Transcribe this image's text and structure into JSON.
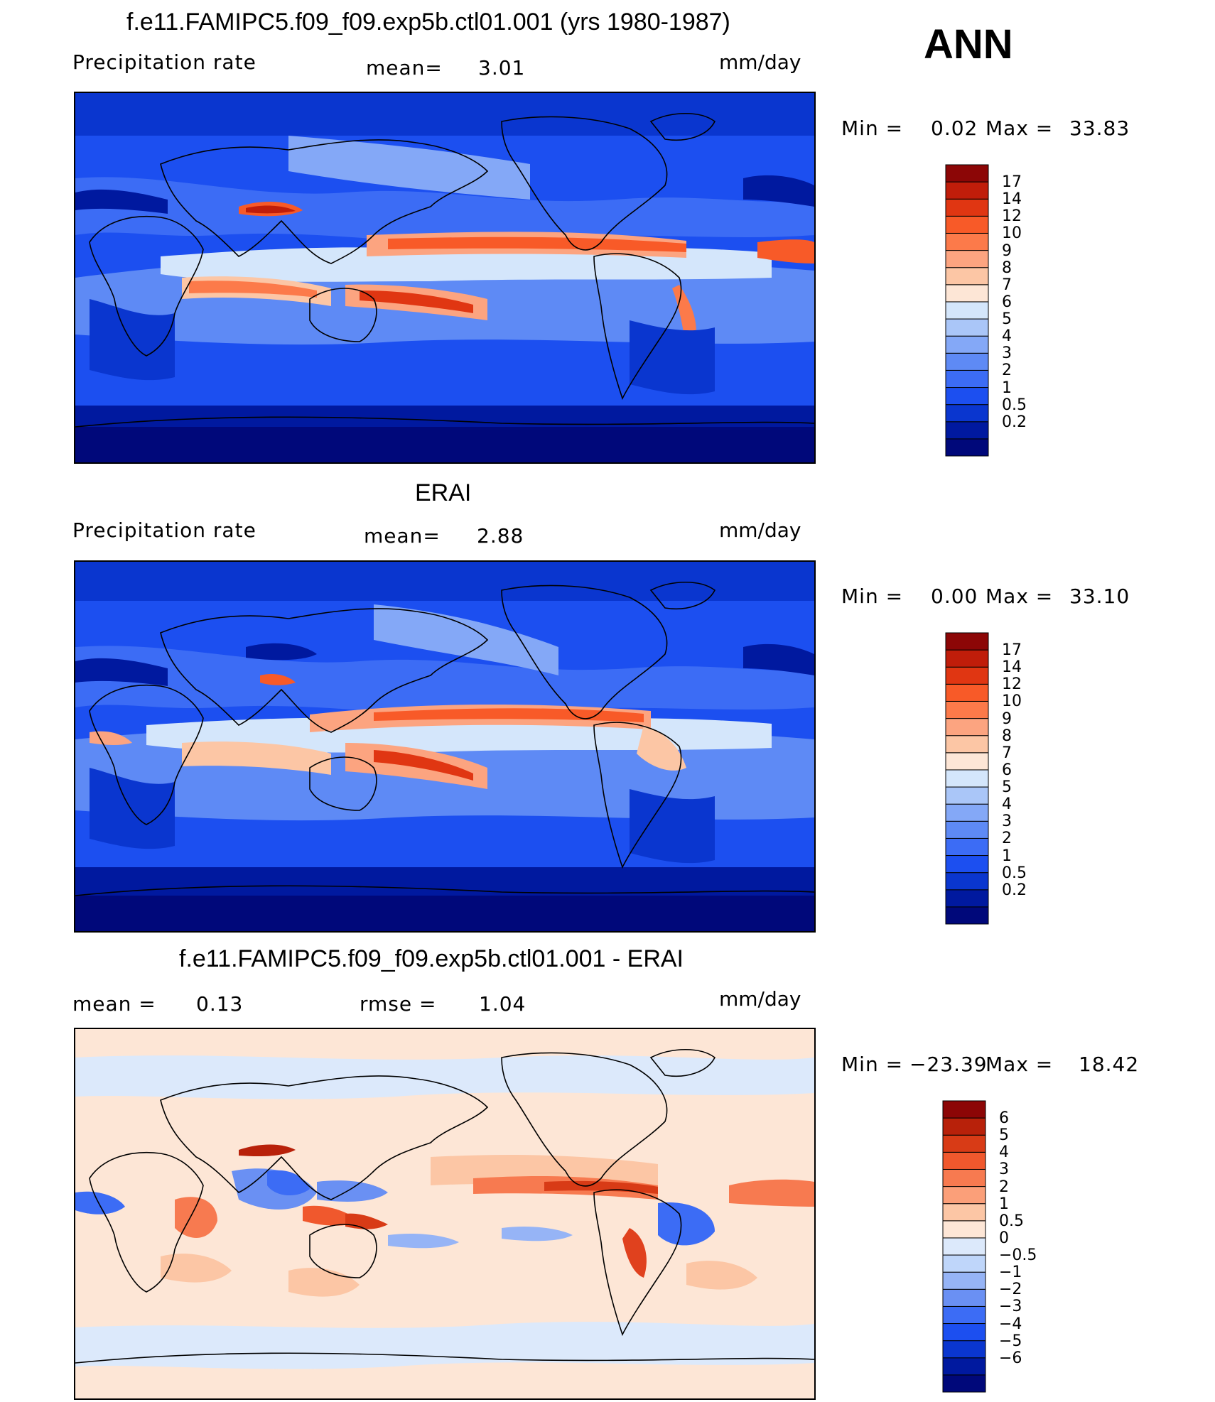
{
  "season": "ANN",
  "colors": {
    "abs": [
      "#00087a",
      "#00199f",
      "#0a36cf",
      "#1c4ff0",
      "#3c6cf5",
      "#5e8af5",
      "#84a8f7",
      "#aac6f8",
      "#d4e6fb",
      "#fde6d6",
      "#fcc6a5",
      "#fca480",
      "#fc7a4a",
      "#f85a28",
      "#e03612",
      "#c01d0a",
      "#8c0606"
    ],
    "diff": [
      "#00087a",
      "#00199f",
      "#0a36cf",
      "#1c4ff0",
      "#3c6cf5",
      "#6a90f3",
      "#96b4f6",
      "#bfd6fa",
      "#dce9fb",
      "#fde6d6",
      "#fcc6a5",
      "#fb9f79",
      "#f77a50",
      "#f0582d",
      "#d83b16",
      "#b8210a",
      "#8c0606"
    ]
  },
  "panels": [
    {
      "title": "f.e11.FAMIPC5.f09_f09.exp5b.ctl01.001 (yrs 1980-1987)",
      "variable": "Precipitation  rate",
      "stat_label": "mean=",
      "stat_value": "3.01",
      "units": "mm/day",
      "min_label": "Min  =",
      "min_value": "0.02",
      "max_label": "Max  =",
      "max_value": "33.83",
      "colorbar_ticks": [
        "17",
        "14",
        "12",
        "10",
        "9",
        "8",
        "7",
        "6",
        "5",
        "4",
        "3",
        "2",
        "1",
        "0.5",
        "0.2"
      ]
    },
    {
      "title": "ERAI",
      "variable": "Precipitation  rate",
      "stat_label": "mean=",
      "stat_value": "2.88",
      "units": "mm/day",
      "min_label": "Min  =",
      "min_value": "0.00",
      "max_label": "Max  =",
      "max_value": "33.10",
      "colorbar_ticks": [
        "17",
        "14",
        "12",
        "10",
        "9",
        "8",
        "7",
        "6",
        "5",
        "4",
        "3",
        "2",
        "1",
        "0.5",
        "0.2"
      ]
    },
    {
      "title": "f.e11.FAMIPC5.f09_f09.exp5b.ctl01.001 - ERAI",
      "stat_label": "mean  =",
      "stat_value": "0.13",
      "rmse_label": "rmse  =",
      "rmse_value": "1.04",
      "units": "mm/day",
      "min_label": "Min  =",
      "min_value": "−23.39",
      "max_label": "Max  =",
      "max_value": "18.42",
      "colorbar_ticks": [
        "6",
        "5",
        "4",
        "3",
        "2",
        "1",
        "0.5",
        "0",
        "−0.5",
        "−1",
        "−2",
        "−3",
        "−4",
        "−5",
        "−6"
      ]
    }
  ]
}
